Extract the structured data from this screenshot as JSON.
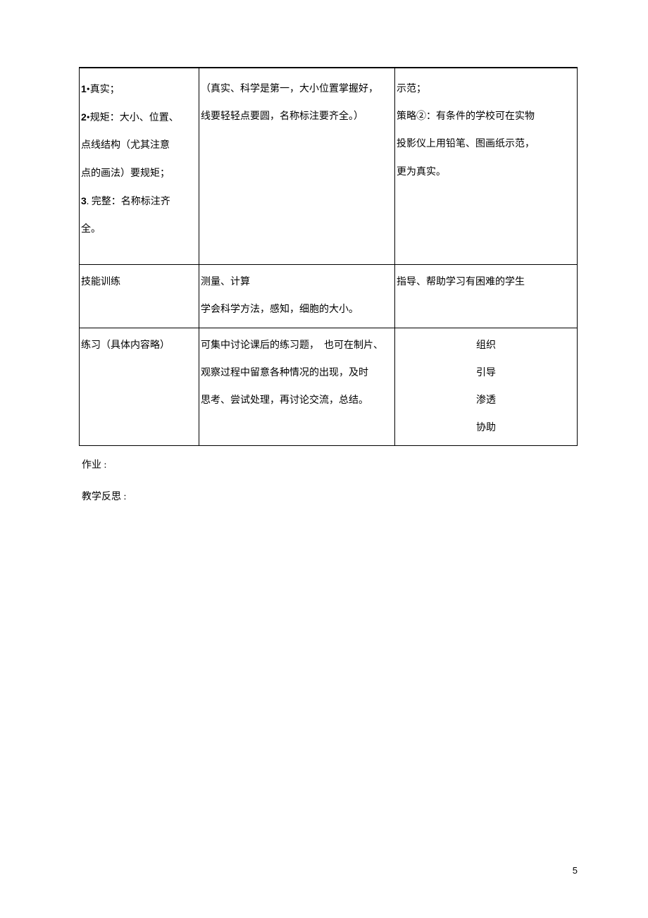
{
  "table": {
    "rows": [
      {
        "col1_lines": [
          {
            "prefix": "1",
            "text": "•真实；"
          },
          {
            "prefix": "2",
            "text": "•规矩：大小、位置、"
          },
          {
            "text": "点线结构（尤其注意"
          },
          {
            "text": "点的画法）要规矩；"
          },
          {
            "prefix": "3",
            "text": ". 完整：名称标注齐"
          },
          {
            "text": "全。"
          }
        ],
        "col2_lines": [
          "（真实、科学是第一，大小位置掌握好，",
          "线要轻轻点要圆，名称标注要齐全。）"
        ],
        "col3_lines": [
          "示范；",
          "策略②：有条件的学校可在实物",
          "投影仪上用铅笔、图画纸示范，",
          "更为真实。"
        ]
      },
      {
        "col1": "技能训练",
        "col2_lines": [
          "测量、计算",
          "学会科学方法，感知，细胞的大小。"
        ],
        "col3": "指导、帮助学习有困难的学生"
      },
      {
        "col1": "练习（具体内容略）",
        "col2_lines": [
          "可集中讨论课后的练习题，　也可在制片、",
          "观察过程中留意各种情况的出现，及时",
          "思考、尝试处理，再讨论交流，总结。"
        ],
        "col3_lines": [
          "组织",
          "引导",
          "渗透",
          "协助"
        ]
      }
    ]
  },
  "footer": {
    "line1": "作业 :",
    "line2": "教学反思 :"
  },
  "page_number": "5",
  "colors": {
    "text": "#000000",
    "border": "#000000",
    "background": "#ffffff"
  },
  "typography": {
    "body_fontsize": 14,
    "page_num_fontsize": 13,
    "line_height": 2.8
  }
}
